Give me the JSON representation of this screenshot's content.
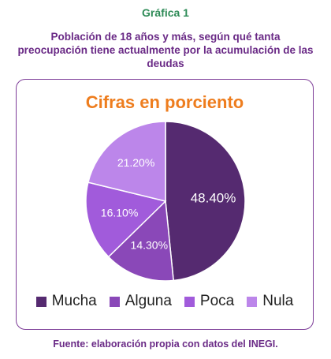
{
  "figure_label": "Gráfica 1",
  "figure_label_color": "#2e8b57",
  "subtitle": "Población de 18 años y más, según qué tanta preocupación tiene actualmente por la acumulación de las deudas",
  "text_color": "#6a2a86",
  "title_color": "#ee7d1e",
  "source": "Fuente: elaboración propia con datos del INEGI.",
  "chart_data": {
    "type": "pie",
    "title": "Cifras en porciento",
    "legend": "bottom",
    "categories": [
      "Mucha",
      "Alguna",
      "Poca",
      "Nula"
    ],
    "values": [
      48.4,
      14.3,
      16.1,
      21.2
    ],
    "labels": [
      "48.40%",
      "14.30%",
      "16.10%",
      "21.20%"
    ],
    "colors": [
      "#552a70",
      "#8a48b8",
      "#a15bdb",
      "#bc86ea"
    ]
  }
}
